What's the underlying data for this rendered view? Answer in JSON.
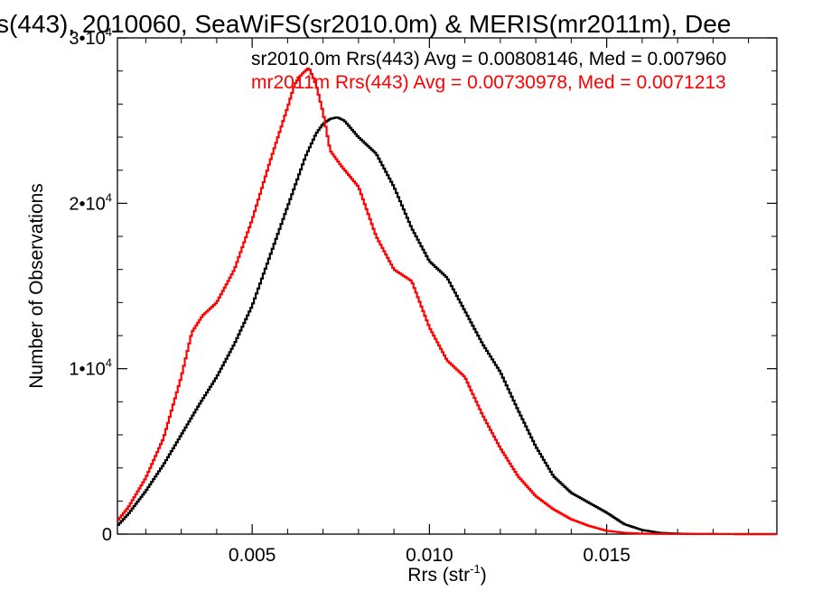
{
  "chart_data": {
    "type": "line",
    "title": "s(443), 2010060, SeaWiFS(sr2010.0m) & MERIS(mr2011m), Dee",
    "xlabel": "Rrs (str",
    "xlabel_sup": "-1",
    "xlabel_close": ")",
    "ylabel": "Number of Observations",
    "xlim": [
      0.0012,
      0.0198
    ],
    "ylim": [
      0,
      30000
    ],
    "xticks": [
      {
        "value": 0.005,
        "label": "0.005"
      },
      {
        "value": 0.01,
        "label": "0.010"
      },
      {
        "value": 0.015,
        "label": "0.015"
      }
    ],
    "yticks": [
      {
        "value": 0,
        "base": "0",
        "exp": ""
      },
      {
        "value": 10000,
        "base": "1•10",
        "exp": "4"
      },
      {
        "value": 20000,
        "base": "2•10",
        "exp": "4"
      },
      {
        "value": 30000,
        "base": "3•10",
        "exp": "4"
      }
    ],
    "series": [
      {
        "name": "sr2010.0m",
        "annotation": "sr2010.0m Rrs(443) Avg = 0.00808146, Med = 0.007960",
        "color": "#000000",
        "x": [
          0.0012,
          0.0015,
          0.002,
          0.0025,
          0.003,
          0.0035,
          0.004,
          0.0045,
          0.005,
          0.0055,
          0.006,
          0.0065,
          0.0068,
          0.007,
          0.0072,
          0.0074,
          0.0076,
          0.0078,
          0.008,
          0.0085,
          0.009,
          0.0095,
          0.01,
          0.0105,
          0.011,
          0.0115,
          0.012,
          0.0125,
          0.013,
          0.0135,
          0.014,
          0.0145,
          0.015,
          0.0155,
          0.016,
          0.0165,
          0.017,
          0.0175,
          0.018,
          0.019,
          0.0198
        ],
        "y": [
          500,
          1200,
          2600,
          4200,
          6000,
          7800,
          9500,
          11500,
          13800,
          16800,
          19800,
          22800,
          24200,
          24800,
          25100,
          25200,
          25000,
          24500,
          24000,
          23000,
          21000,
          18500,
          16500,
          15500,
          13500,
          11500,
          9800,
          7500,
          5300,
          3500,
          2500,
          1900,
          1300,
          600,
          250,
          80,
          30,
          10,
          5,
          0,
          0
        ]
      },
      {
        "name": "mr2011m",
        "annotation": "mr2011m Rrs(443) Avg = 0.00730978, Med = 0.0071213",
        "color": "#ff0000",
        "x": [
          0.0012,
          0.0015,
          0.002,
          0.0025,
          0.003,
          0.0033,
          0.0036,
          0.004,
          0.0045,
          0.005,
          0.0055,
          0.006,
          0.0062,
          0.0064,
          0.0066,
          0.0068,
          0.007,
          0.0072,
          0.0075,
          0.008,
          0.0085,
          0.009,
          0.0095,
          0.01,
          0.0105,
          0.011,
          0.0115,
          0.012,
          0.0125,
          0.013,
          0.0135,
          0.014,
          0.0145,
          0.015,
          0.0155,
          0.016,
          0.017,
          0.018,
          0.019,
          0.0198
        ],
        "y": [
          800,
          1600,
          3400,
          5800,
          9500,
          12200,
          13200,
          14000,
          16000,
          19000,
          22500,
          25800,
          27200,
          27800,
          28200,
          27200,
          25500,
          23200,
          22300,
          21000,
          18000,
          16000,
          15300,
          12500,
          10500,
          9500,
          7200,
          5200,
          3500,
          2300,
          1500,
          900,
          500,
          200,
          80,
          30,
          10,
          5,
          0,
          0
        ]
      }
    ]
  }
}
